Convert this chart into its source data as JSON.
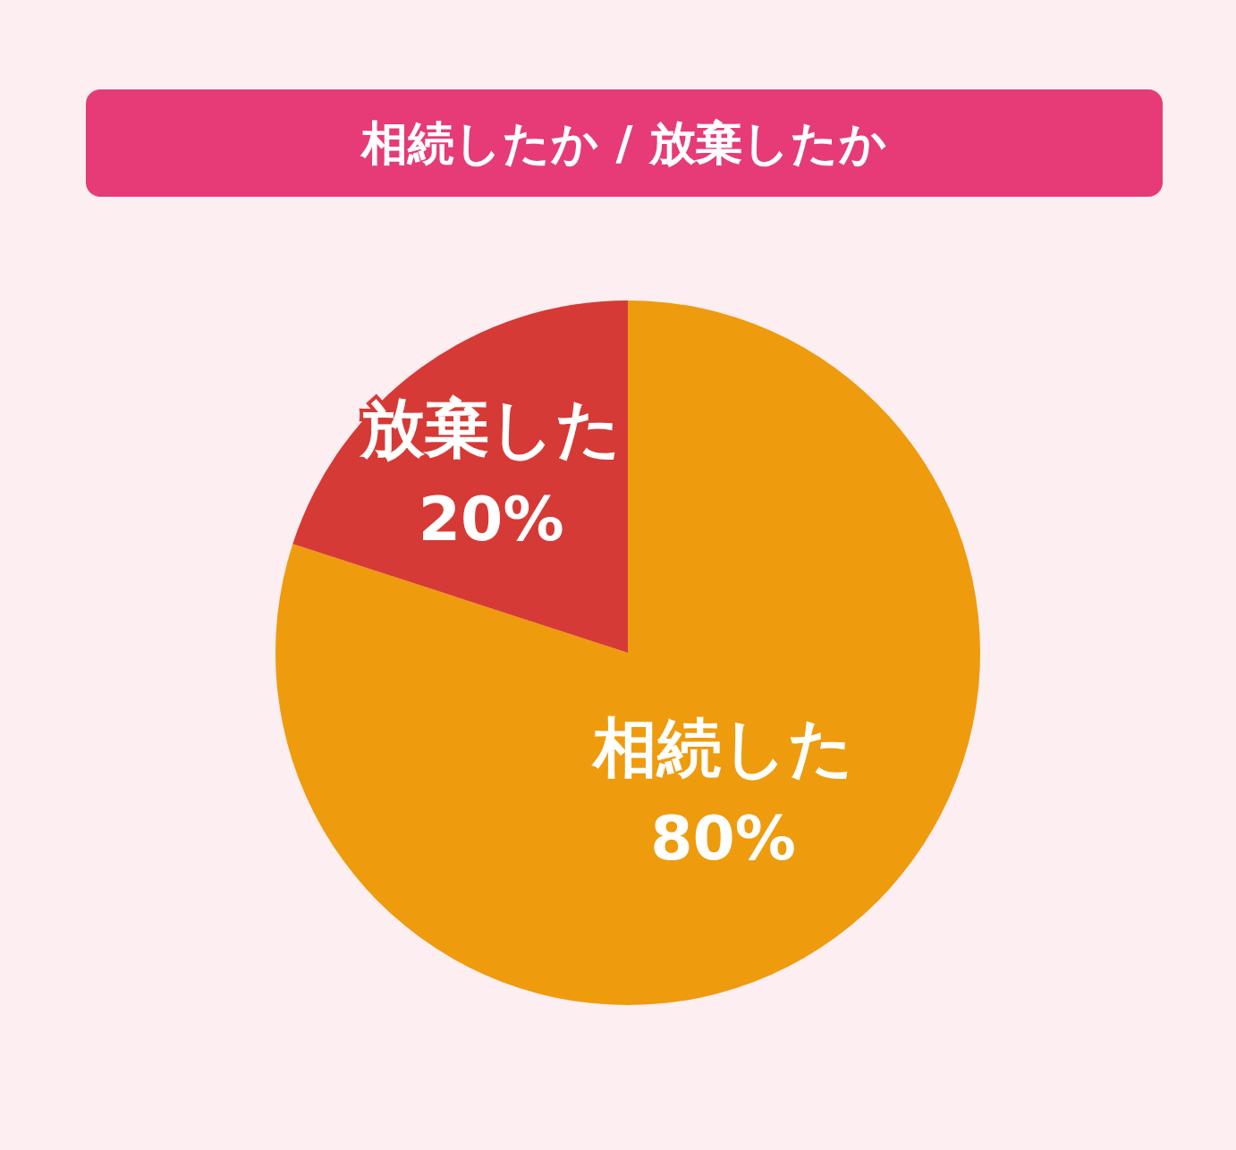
{
  "chart_data": {
    "type": "pie",
    "title": "相続したか / 放棄したか",
    "categories": [
      "相続した",
      "放棄した"
    ],
    "values": [
      80,
      20
    ],
    "value_labels": [
      "80%",
      "20%"
    ],
    "colors": [
      "#ee9b0e",
      "#d63a36"
    ]
  }
}
